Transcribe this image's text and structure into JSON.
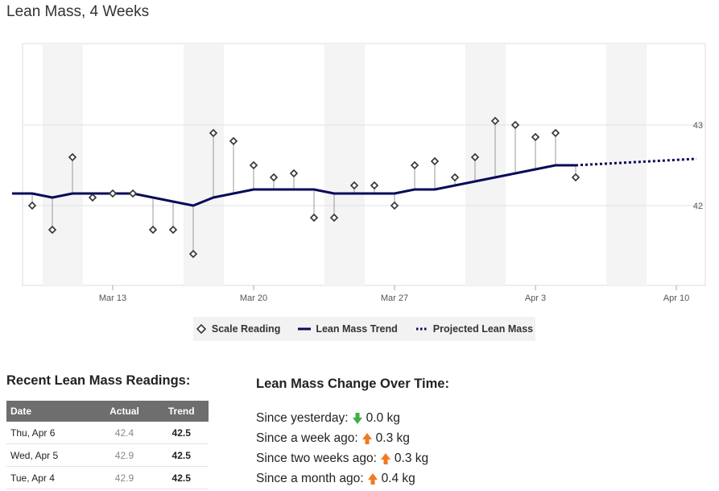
{
  "page": {
    "title": "Lean Mass, 4 Weeks"
  },
  "chart_data": {
    "type": "line",
    "x_ticks": [
      "Mar 13",
      "Mar 20",
      "Mar 27",
      "Apr 3",
      "Apr 10"
    ],
    "y_ticks": [
      "42",
      "43"
    ],
    "x_range": [
      "Mar 9",
      "Apr 11"
    ],
    "ylim": [
      41.0,
      44.0
    ],
    "grid": true,
    "legend_position": "bottom",
    "series": [
      {
        "name": "Scale Reading",
        "style": "diamond-markers",
        "points": [
          [
            "Mar 9",
            42.0
          ],
          [
            "Mar 10",
            41.7
          ],
          [
            "Mar 11",
            42.6
          ],
          [
            "Mar 12",
            42.1
          ],
          [
            "Mar 13",
            42.15
          ],
          [
            "Mar 14",
            42.15
          ],
          [
            "Mar 15",
            41.7
          ],
          [
            "Mar 16",
            41.7
          ],
          [
            "Mar 17",
            41.4
          ],
          [
            "Mar 18",
            42.9
          ],
          [
            "Mar 19",
            42.8
          ],
          [
            "Mar 20",
            42.5
          ],
          [
            "Mar 21",
            42.35
          ],
          [
            "Mar 22",
            42.4
          ],
          [
            "Mar 23",
            41.85
          ],
          [
            "Mar 24",
            41.85
          ],
          [
            "Mar 25",
            42.25
          ],
          [
            "Mar 26",
            42.25
          ],
          [
            "Mar 27",
            42.0
          ],
          [
            "Mar 28",
            42.5
          ],
          [
            "Mar 29",
            42.55
          ],
          [
            "Mar 30",
            42.35
          ],
          [
            "Mar 31",
            42.6
          ],
          [
            "Apr 1",
            43.05
          ],
          [
            "Apr 2",
            43.0
          ],
          [
            "Apr 3",
            42.85
          ],
          [
            "Apr 4",
            42.9
          ],
          [
            "Apr 5",
            42.35
          ]
        ]
      },
      {
        "name": "Lean Mass Trend",
        "style": "solid",
        "points": [
          [
            "Mar 8",
            42.15
          ],
          [
            "Mar 9",
            42.15
          ],
          [
            "Mar 10",
            42.1
          ],
          [
            "Mar 11",
            42.15
          ],
          [
            "Mar 12",
            42.15
          ],
          [
            "Mar 13",
            42.15
          ],
          [
            "Mar 14",
            42.15
          ],
          [
            "Mar 15",
            42.1
          ],
          [
            "Mar 16",
            42.05
          ],
          [
            "Mar 17",
            42.0
          ],
          [
            "Mar 18",
            42.1
          ],
          [
            "Mar 19",
            42.15
          ],
          [
            "Mar 20",
            42.2
          ],
          [
            "Mar 21",
            42.2
          ],
          [
            "Mar 22",
            42.2
          ],
          [
            "Mar 23",
            42.2
          ],
          [
            "Mar 24",
            42.15
          ],
          [
            "Mar 25",
            42.15
          ],
          [
            "Mar 26",
            42.15
          ],
          [
            "Mar 27",
            42.15
          ],
          [
            "Mar 28",
            42.2
          ],
          [
            "Mar 29",
            42.2
          ],
          [
            "Mar 30",
            42.25
          ],
          [
            "Mar 31",
            42.3
          ],
          [
            "Apr 1",
            42.35
          ],
          [
            "Apr 2",
            42.4
          ],
          [
            "Apr 3",
            42.45
          ],
          [
            "Apr 4",
            42.5
          ],
          [
            "Apr 5",
            42.5
          ]
        ]
      },
      {
        "name": "Projected Lean Mass",
        "style": "dotted",
        "points": [
          [
            "Apr 5",
            42.5
          ],
          [
            "Apr 11",
            42.58
          ]
        ]
      }
    ],
    "colors": {
      "trend": "#0a0a5a",
      "marker": "#333333",
      "band": "#f4f4f4",
      "grid": "#e2e2e2"
    }
  },
  "legend": {
    "items": [
      {
        "label": "Scale Reading",
        "symbol": "diamond"
      },
      {
        "label": "Lean Mass Trend",
        "symbol": "solid-line"
      },
      {
        "label": "Projected Lean Mass",
        "symbol": "dotted-line"
      }
    ]
  },
  "recent": {
    "title": "Recent Lean Mass Readings:",
    "columns": [
      "Date",
      "Actual",
      "Trend"
    ],
    "rows": [
      {
        "date": "Thu, Apr 6",
        "actual": "42.4",
        "trend": "42.5"
      },
      {
        "date": "Wed, Apr 5",
        "actual": "42.9",
        "trend": "42.5"
      },
      {
        "date": "Tue, Apr 4",
        "actual": "42.9",
        "trend": "42.5"
      }
    ]
  },
  "change": {
    "title": "Lean Mass Change Over Time:",
    "items": [
      {
        "label": "Since yesterday:",
        "direction": "down",
        "icon": "down-arrow-icon",
        "color": "#3cb043",
        "value": "0.0 kg"
      },
      {
        "label": "Since a week ago:",
        "direction": "up",
        "icon": "up-arrow-icon",
        "color": "#f07a22",
        "value": "0.3 kg"
      },
      {
        "label": "Since two weeks ago:",
        "direction": "up",
        "icon": "up-arrow-icon",
        "color": "#f07a22",
        "value": "0.3 kg"
      },
      {
        "label": "Since a month ago:",
        "direction": "up",
        "icon": "up-arrow-icon",
        "color": "#f07a22",
        "value": "0.4 kg"
      }
    ]
  }
}
